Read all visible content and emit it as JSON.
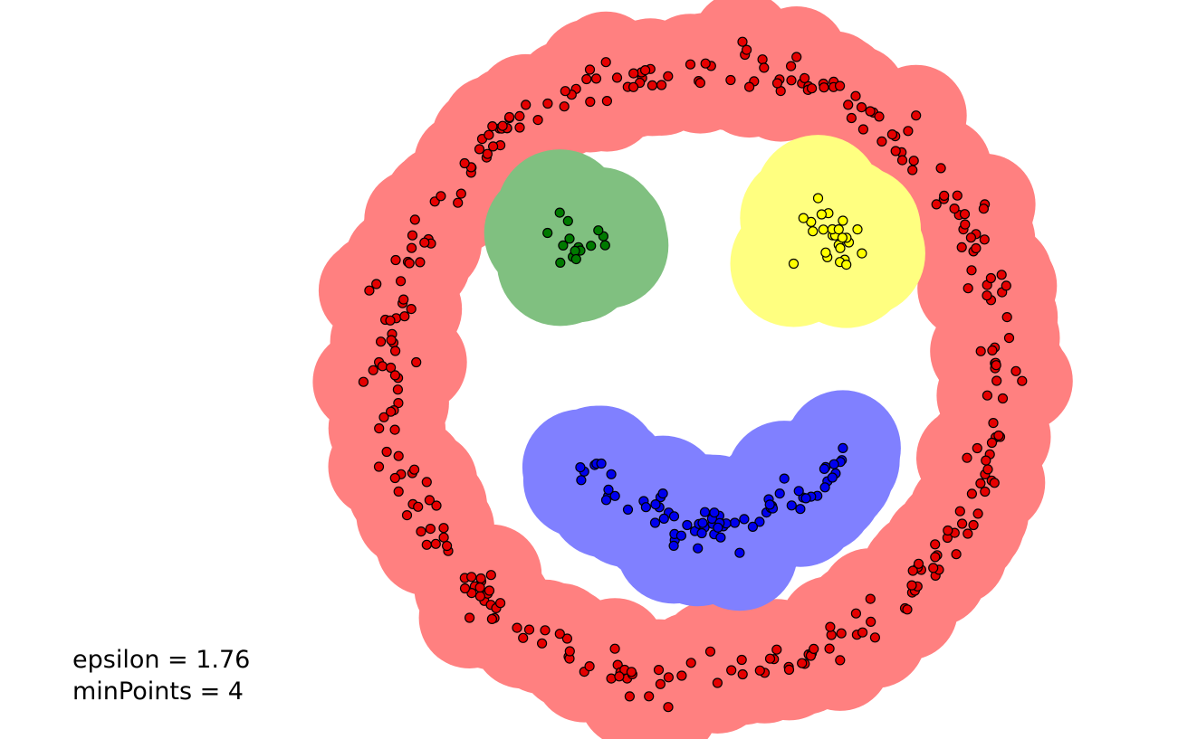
{
  "params": {
    "epsilon_text": "epsilon = 1.76",
    "minpoints_text": "minPoints = 4"
  },
  "visualization": {
    "algorithm": "DBSCAN",
    "clusters": [
      {
        "id": "face-ring",
        "shape": "ring",
        "point_color": "#e60000",
        "region_color": "#ff8080",
        "approx_points": 320
      },
      {
        "id": "left-eye",
        "shape": "blob",
        "point_color": "#007a00",
        "region_color": "#80c080",
        "approx_points": 15
      },
      {
        "id": "right-eye",
        "shape": "blob",
        "point_color": "#ffff00",
        "region_color": "#ffff80",
        "approx_points": 25
      },
      {
        "id": "mouth",
        "shape": "arc",
        "point_color": "#0000ee",
        "region_color": "#8080ff",
        "approx_points": 75
      }
    ],
    "point_stroke_color": "#000000"
  }
}
